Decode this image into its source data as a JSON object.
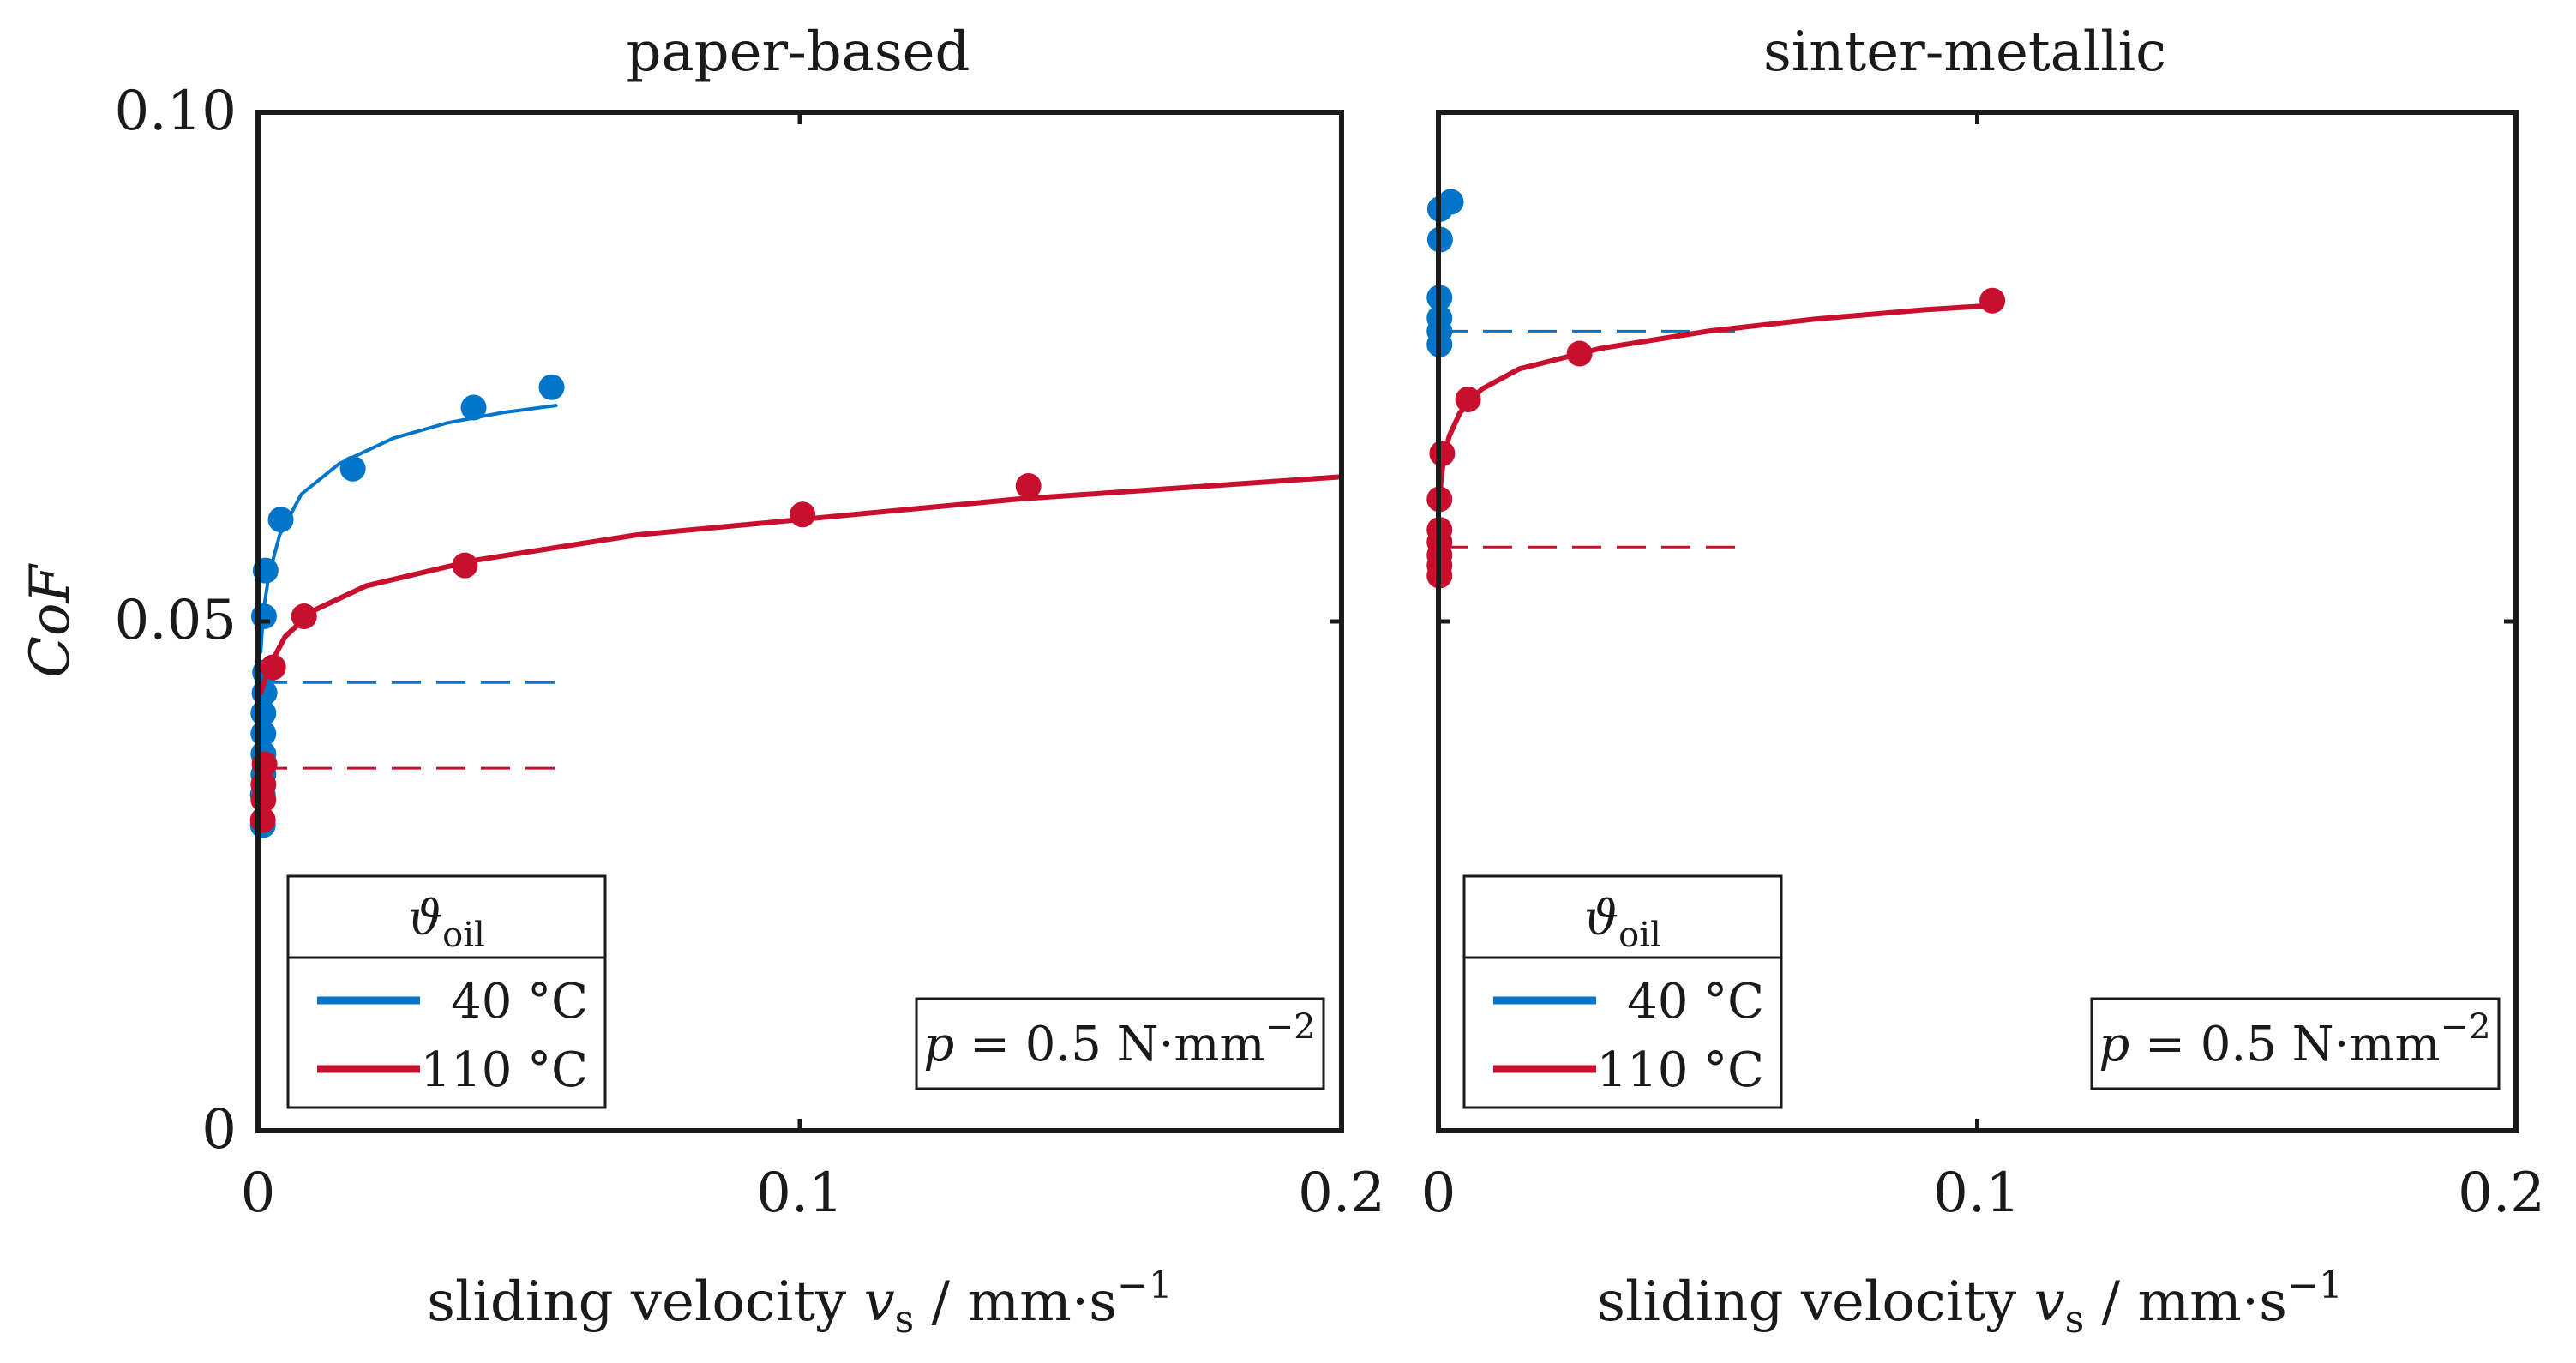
{
  "colors": {
    "c40": "#0075C9",
    "c110": "#C8102E"
  },
  "chart_data": [
    {
      "type": "scatter",
      "title": "paper-based",
      "xlabel": {
        "main": "sliding velocity ",
        "var": "v",
        "sub": "s",
        "unit": " / mm·s",
        "sup": "−1"
      },
      "ylabel": "CoF",
      "xlim": [
        0,
        0.2
      ],
      "ylim": [
        0,
        0.1
      ],
      "xticks": [
        "0",
        "0.1",
        "0.2"
      ],
      "yticks": [
        "0",
        "0.05",
        "0.10"
      ],
      "legend": {
        "title_main": "ϑ",
        "title_sub": "oil",
        "entries": [
          "40 °C",
          "110 °C"
        ],
        "placement": "bottom-left"
      },
      "annotation": {
        "var": "p",
        "text": " = 0.5 N·mm",
        "sup": "−2",
        "placement": "bottom-right"
      },
      "series": [
        {
          "name": "40 °C",
          "color": "#0075C9",
          "points": [
            [
              0.0009,
              0.03
            ],
            [
              0.0009,
              0.033
            ],
            [
              0.001,
              0.035
            ],
            [
              0.001,
              0.037
            ],
            [
              0.001,
              0.039
            ],
            [
              0.001,
              0.041
            ],
            [
              0.0012,
              0.043
            ],
            [
              0.0013,
              0.045
            ],
            [
              0.0011,
              0.0505
            ],
            [
              0.0014,
              0.055
            ],
            [
              0.0042,
              0.06
            ],
            [
              0.0175,
              0.065
            ],
            [
              0.0398,
              0.071
            ],
            [
              0.0542,
              0.073
            ]
          ],
          "fit": [
            [
              0.0005,
              0.047
            ],
            [
              0.001,
              0.051
            ],
            [
              0.002,
              0.0545
            ],
            [
              0.004,
              0.0585
            ],
            [
              0.008,
              0.0625
            ],
            [
              0.015,
              0.0655
            ],
            [
              0.025,
              0.068
            ],
            [
              0.035,
              0.0695
            ],
            [
              0.045,
              0.0705
            ],
            [
              0.055,
              0.0712
            ]
          ],
          "static": 0.044,
          "static_x": [
            0,
            0.057
          ]
        },
        {
          "name": "110 °C",
          "color": "#C8102E",
          "points": [
            [
              0.0009,
              0.0305
            ],
            [
              0.001,
              0.0325
            ],
            [
              0.001,
              0.034
            ],
            [
              0.0012,
              0.036
            ],
            [
              0.0028,
              0.0455
            ],
            [
              0.0085,
              0.0505
            ],
            [
              0.0382,
              0.0555
            ],
            [
              0.1005,
              0.0605
            ],
            [
              0.1422,
              0.0633
            ]
          ],
          "fit": [
            [
              0.0005,
              0.043
            ],
            [
              0.002,
              0.0455
            ],
            [
              0.005,
              0.0485
            ],
            [
              0.01,
              0.051
            ],
            [
              0.02,
              0.0535
            ],
            [
              0.04,
              0.056
            ],
            [
              0.07,
              0.0585
            ],
            [
              0.1,
              0.06
            ],
            [
              0.14,
              0.062
            ],
            [
              0.2,
              0.0642
            ]
          ],
          "static": 0.0356,
          "static_x": [
            0,
            0.057
          ]
        }
      ]
    },
    {
      "type": "scatter",
      "title": "sinter-metallic",
      "xlabel": {
        "main": "sliding velocity ",
        "var": "v",
        "sub": "s",
        "unit": " / mm·s",
        "sup": "−1"
      },
      "ylabel": "",
      "xlim": [
        0,
        0.2
      ],
      "ylim": [
        0,
        0.1
      ],
      "xticks": [
        "0",
        "0.1",
        "0.2"
      ],
      "yticks": [],
      "legend": {
        "title_main": "ϑ",
        "title_sub": "oil",
        "entries": [
          "40 °C",
          "110 °C"
        ],
        "placement": "bottom-left"
      },
      "annotation": {
        "var": "p",
        "text": " = 0.5 N·mm",
        "sup": "−2",
        "placement": "bottom-right"
      },
      "series": [
        {
          "name": "40 °C",
          "color": "#0075C9",
          "points": [
            [
              0.0002,
              0.0772
            ],
            [
              0.0002,
              0.0785
            ],
            [
              0.0002,
              0.0798
            ],
            [
              0.0002,
              0.0818
            ],
            [
              0.0003,
              0.0875
            ],
            [
              0.0003,
              0.0905
            ],
            [
              0.0023,
              0.0912
            ]
          ],
          "fit": [],
          "static": 0.0785,
          "static_x": [
            0,
            0.0565
          ]
        },
        {
          "name": "110 °C",
          "color": "#C8102E",
          "points": [
            [
              0.0002,
              0.0545
            ],
            [
              0.0002,
              0.0555
            ],
            [
              0.0002,
              0.0565
            ],
            [
              0.0002,
              0.0578
            ],
            [
              0.0002,
              0.059
            ],
            [
              0.0002,
              0.062
            ],
            [
              0.0007,
              0.0665
            ],
            [
              0.0055,
              0.0718
            ],
            [
              0.0262,
              0.0763
            ],
            [
              0.1028,
              0.0815
            ]
          ],
          "fit": [
            [
              0.0002,
              0.0615
            ],
            [
              0.0005,
              0.064
            ],
            [
              0.001,
              0.066
            ],
            [
              0.002,
              0.0682
            ],
            [
              0.004,
              0.0705
            ],
            [
              0.008,
              0.0728
            ],
            [
              0.015,
              0.0748
            ],
            [
              0.03,
              0.0768
            ],
            [
              0.05,
              0.0785
            ],
            [
              0.07,
              0.0797
            ],
            [
              0.09,
              0.0806
            ],
            [
              0.102,
              0.081
            ]
          ],
          "static": 0.0573,
          "static_x": [
            0,
            0.0565
          ]
        }
      ]
    }
  ]
}
